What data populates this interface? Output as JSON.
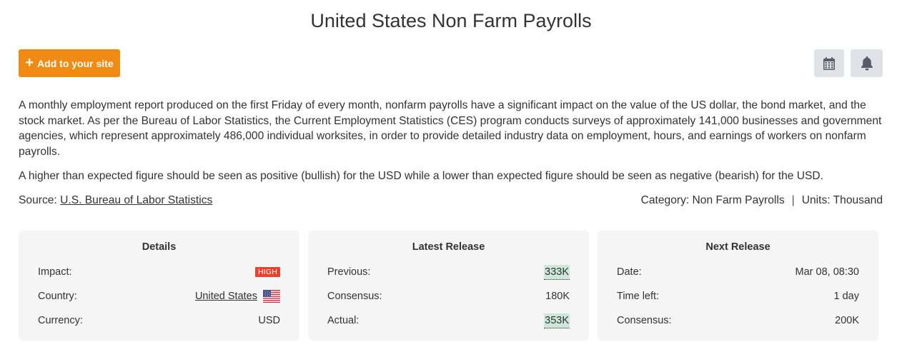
{
  "page": {
    "title": "United States Non Farm Payrolls"
  },
  "toolbar": {
    "add_label": "Add to your site",
    "calendar_icon": "calendar-icon",
    "bell_icon": "bell-icon"
  },
  "colors": {
    "add_button": "#f08a12",
    "icon_button_bg": "#dfe3e8",
    "high_badge": "#e8412c",
    "highlight": "#cde8da",
    "card_bg": "#f5f5f5"
  },
  "description": {
    "paragraph1": "A monthly employment report produced on the first Friday of every month, nonfarm payrolls have a significant impact on the value of the US dollar, the bond market, and the stock market.  As per the Bureau of Labor Statistics, the Current Employment Statistics (CES) program conducts surveys of approximately 141,000 businesses and government agencies, which represent approximately 486,000 individual worksites, in order to provide detailed industry data on employment, hours, and earnings of workers on nonfarm payrolls.",
    "paragraph2": "A higher than expected figure should be seen as positive (bullish) for the USD while a lower than expected figure should be seen as negative (bearish) for the USD."
  },
  "source": {
    "label": "Source:",
    "link_text": "U.S. Bureau of Labor Statistics"
  },
  "meta": {
    "category": "Category: Non Farm Payrolls",
    "separator": "|",
    "units": "Units: Thousand"
  },
  "details": {
    "title": "Details",
    "impact_label": "Impact:",
    "impact_value": "HIGH",
    "country_label": "Country:",
    "country_value": "United States",
    "currency_label": "Currency:",
    "currency_value": "USD"
  },
  "latest_release": {
    "title": "Latest Release",
    "previous_label": "Previous:",
    "previous_value": "333K",
    "consensus_label": "Consensus:",
    "consensus_value": "180K",
    "actual_label": "Actual:",
    "actual_value": "353K"
  },
  "next_release": {
    "title": "Next Release",
    "date_label": "Date:",
    "date_value": "Mar 08, 08:30",
    "time_left_label": "Time left:",
    "time_left_value": "1 day",
    "consensus_label": "Consensus:",
    "consensus_value": "200K"
  }
}
